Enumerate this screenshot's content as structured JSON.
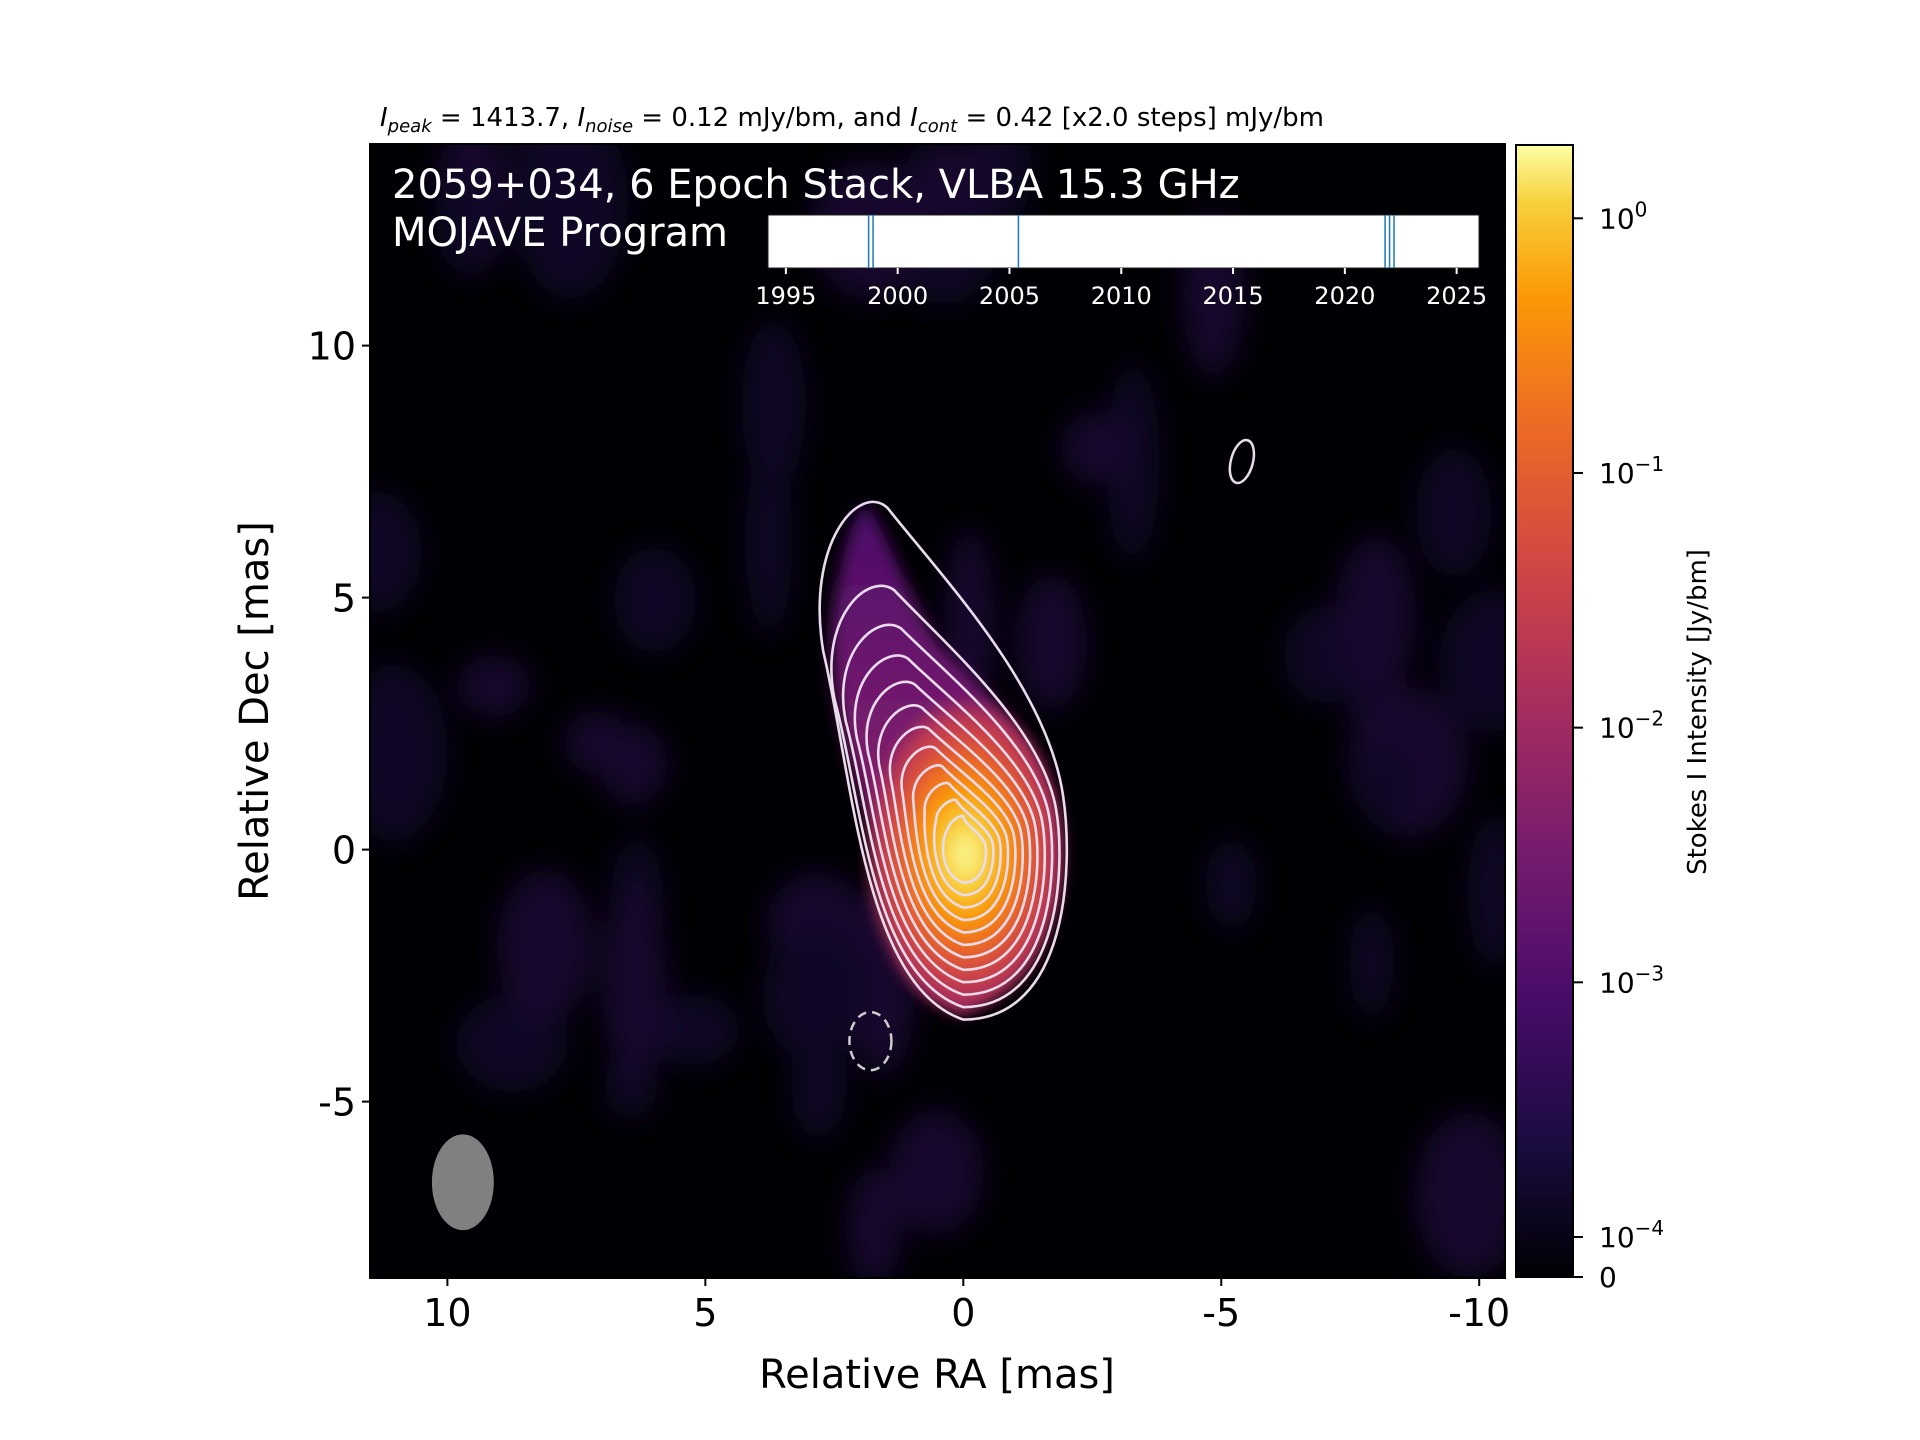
{
  "chart_data": {
    "type": "heatmap",
    "header": {
      "peak_symbol": "I",
      "peak_sub": "peak",
      "peak_value": " = 1413.7, ",
      "noise_symbol": "I",
      "noise_sub": "noise",
      "noise_value": " = 0.12 mJy/bm, and ",
      "cont_symbol": "I",
      "cont_sub": "cont",
      "cont_value": " = 0.42 [x2.0 steps] mJy/bm"
    },
    "title": "2059+034, 6 Epoch Stack, VLBA 15.3 GHz",
    "subtitle": "MOJAVE Program",
    "xlabel": "Relative RA [mas]",
    "ylabel": "Relative Dec [mas]",
    "xlim": [
      11.5,
      -10.5
    ],
    "ylim": [
      -8.5,
      14
    ],
    "x_ticks": [
      10,
      5,
      0,
      -5,
      -10
    ],
    "x_tick_labels": [
      "10",
      "5",
      "0",
      "-5",
      "-10"
    ],
    "y_ticks": [
      10,
      5,
      0,
      -5
    ],
    "y_tick_labels": [
      "10",
      "5",
      "0",
      "-5"
    ],
    "colorbar": {
      "label": "Stokes I Intensity [Jy/bm]",
      "scale": "log",
      "colormap": "inferno",
      "tick_values": [
        1,
        0.1,
        0.01,
        0.001,
        0.0001,
        0
      ],
      "tick_base": [
        "10",
        "10",
        "10",
        "10",
        "10",
        "0"
      ],
      "tick_exp": [
        "0",
        "−1",
        "−2",
        "−3",
        "−4",
        ""
      ]
    },
    "source": {
      "peak_jy_per_beam": 1.4137,
      "core_x": 0,
      "core_y": 0
    },
    "contours": {
      "base_mjy_per_beam": 0.42,
      "step_factor": 2.0,
      "positive_levels": 12,
      "negative_contour": {
        "x": 1.8,
        "y": -3.8
      },
      "isolated_contour": {
        "x": -5.4,
        "y": 7.7
      },
      "color": "#e8dcec"
    },
    "beam": {
      "x": 9.7,
      "y": -6.6,
      "major_mas": 1.9,
      "minor_mas": 1.2
    },
    "epoch_timeline": {
      "tick_values": [
        1995,
        2000,
        2005,
        2010,
        2015,
        2020,
        2025
      ],
      "tick_labels": [
        "1995",
        "2000",
        "2005",
        "2010",
        "2015",
        "2020",
        "2025"
      ],
      "xlim": [
        1994.2,
        2026.0
      ],
      "epochs": [
        1998.7,
        1998.9,
        2005.4,
        2021.8,
        2022.0,
        2022.2
      ],
      "epoch_color": "#1f77b4"
    }
  }
}
